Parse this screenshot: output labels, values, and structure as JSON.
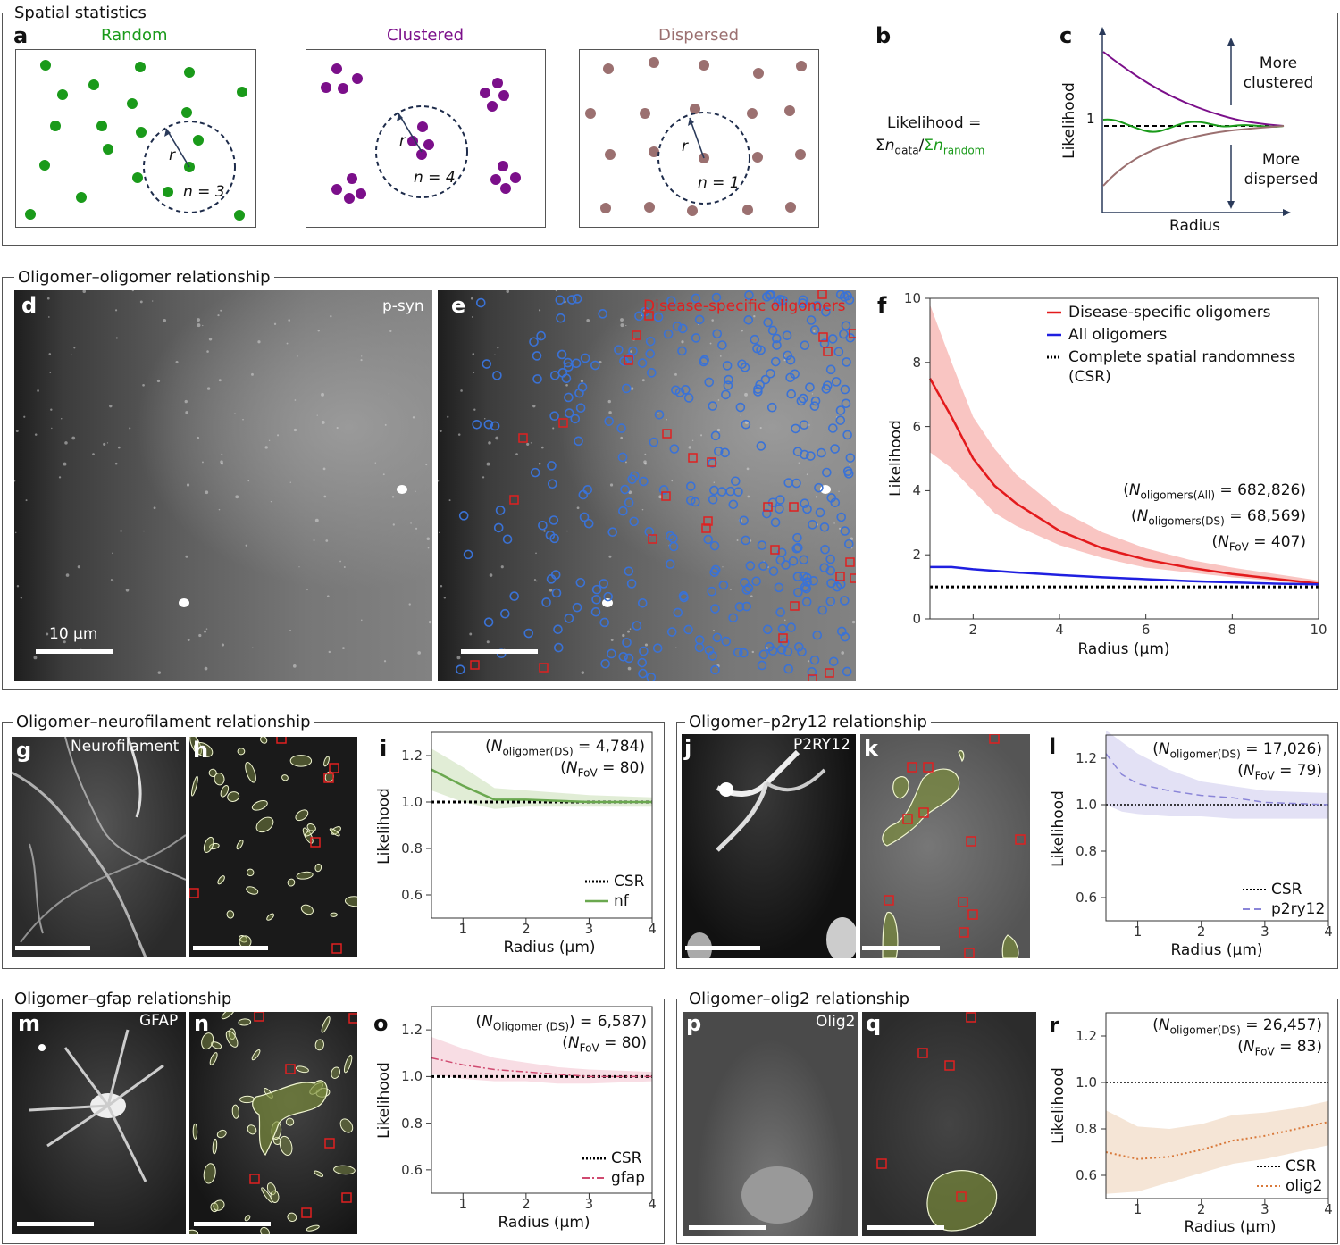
{
  "sections": {
    "spatial": "Spatial statistics",
    "oligo": "Oligomer–oligomer relationship",
    "nf": "Oligomer–neurofilament relationship",
    "p2": "Oligomer–p2ry12 relationship",
    "gfap": "Oligomer–gfap relationship",
    "olig2": "Oligomer–olig2 relationship"
  },
  "panel_letters": {
    "a": "a",
    "b": "b",
    "c": "c",
    "d": "d",
    "e": "e",
    "f": "f",
    "g": "g",
    "h": "h",
    "i": "i",
    "j": "j",
    "k": "k",
    "l": "l",
    "m": "m",
    "n": "n",
    "o": "o",
    "p": "p",
    "q": "q",
    "r": "r"
  },
  "panel_a": {
    "random": {
      "title": "Random",
      "n_label": "n = 3",
      "r": "r",
      "color": "#1a9a1a"
    },
    "clustered": {
      "title": "Clustered",
      "n_label": "n = 4",
      "r": "r",
      "color": "#7b0f8a"
    },
    "dispersed": {
      "title": "Dispersed",
      "n_label": "n = 1",
      "r": "r",
      "color": "#9b7070"
    }
  },
  "panel_b": {
    "line1": "Likelihood =",
    "sigma": "Σ",
    "n": "n",
    "sub_data": "data",
    "slash": "/",
    "sub_random": "random"
  },
  "panel_c": {
    "ylabel": "Likelihood",
    "y_tick": "1",
    "xlabel": "Radius",
    "up_label": [
      "More",
      "clustered"
    ],
    "down_label": [
      "More",
      "dispersed"
    ],
    "colors": {
      "clustered": "#7b0f8a",
      "random": "#1a9a1a",
      "dispersed": "#9b7070"
    }
  },
  "images": {
    "d": {
      "label": "p-syn",
      "scale": "10 µm"
    },
    "e": {
      "label": "Disease-specific oligomers",
      "circle_color": "#3a72d6",
      "square_color": "#e02020"
    },
    "g": {
      "label": "Neurofilament"
    },
    "j": {
      "label": "P2RY12"
    },
    "m": {
      "label": "GFAP"
    },
    "p": {
      "label": "Olig2"
    }
  },
  "chart_data": [
    {
      "id": "f",
      "type": "line",
      "xlabel": "Radius (µm)",
      "ylabel": "Likelihood",
      "xlim": [
        1,
        10
      ],
      "ylim": [
        0,
        10
      ],
      "xticks": [
        2,
        4,
        6,
        8,
        10
      ],
      "yticks": [
        0,
        2,
        4,
        6,
        8,
        10
      ],
      "ytick_labels": [
        "0",
        "2",
        "4",
        "6",
        "8",
        "10"
      ],
      "legend_position": "top-right",
      "annotations": [
        {
          "sym": "N",
          "sub": "oligomers(All)",
          "text": " = 682,826)"
        },
        {
          "sym": "N",
          "sub": "oligomers(DS)",
          "text": " = 68,569)"
        },
        {
          "sym": "N",
          "sub": "FoV",
          "text": " = 407)"
        }
      ],
      "series": [
        {
          "name": "Disease-specific oligomers",
          "color": "#e31a1c",
          "style": "solid",
          "band_color": "#f7b7b3",
          "x": [
            1,
            1.5,
            2,
            2.5,
            3,
            4,
            5,
            6,
            7,
            8,
            9,
            10
          ],
          "y": [
            7.5,
            6.3,
            5.0,
            4.15,
            3.6,
            2.75,
            2.2,
            1.85,
            1.6,
            1.4,
            1.25,
            1.1
          ],
          "lower": [
            5.2,
            4.7,
            4.0,
            3.3,
            2.9,
            2.3,
            1.9,
            1.6,
            1.45,
            1.3,
            1.18,
            1.05
          ],
          "upper": [
            9.8,
            8.0,
            6.3,
            5.3,
            4.5,
            3.4,
            2.7,
            2.2,
            1.85,
            1.6,
            1.4,
            1.2
          ]
        },
        {
          "name": "All oligomers",
          "color": "#1f1fe0",
          "style": "solid",
          "x": [
            1,
            1.5,
            2,
            3,
            4,
            5,
            6,
            7,
            8,
            9,
            10
          ],
          "y": [
            1.62,
            1.62,
            1.55,
            1.45,
            1.37,
            1.3,
            1.24,
            1.18,
            1.14,
            1.1,
            1.08
          ]
        },
        {
          "name": "Complete spatial randomness",
          "name_line2": "(CSR)",
          "color": "#000000",
          "style": "csr-thick",
          "x": [
            1,
            10
          ],
          "y": [
            1,
            1
          ]
        }
      ]
    },
    {
      "id": "i",
      "type": "line",
      "xlabel": "Radius (µm)",
      "ylabel": "Likelihood",
      "xlim": [
        0.5,
        4
      ],
      "ylim": [
        0.5,
        1.3
      ],
      "xticks": [
        1,
        2,
        3,
        4
      ],
      "yticks": [
        0.6,
        0.8,
        1.0,
        1.2
      ],
      "ytick_labels": [
        "0.6",
        "0.8",
        "1.0",
        "1.2"
      ],
      "legend_position": "bottom-right",
      "annotations": [
        {
          "sym": "N",
          "sub": "oligomer(DS)",
          "text": " = 4,784)"
        },
        {
          "sym": "N",
          "sub": "FoV",
          "text": " = 80)"
        }
      ],
      "series": [
        {
          "name": "CSR",
          "color": "#000000",
          "style": "csr-thick",
          "x": [
            0.5,
            4
          ],
          "y": [
            1,
            1
          ]
        },
        {
          "name": "nf",
          "color": "#6aa84f",
          "style": "solid",
          "band_color": "#d9e8cc",
          "x": [
            0.5,
            1,
            1.5,
            2,
            3,
            4
          ],
          "y": [
            1.14,
            1.07,
            1.01,
            1.01,
            1.0,
            1.0
          ],
          "lower": [
            1.05,
            1.0,
            0.97,
            0.98,
            0.98,
            0.98
          ],
          "upper": [
            1.23,
            1.15,
            1.06,
            1.05,
            1.03,
            1.02
          ]
        }
      ]
    },
    {
      "id": "l",
      "type": "line",
      "xlabel": "Radius (µm)",
      "ylabel": "Likelihood",
      "xlim": [
        0.5,
        4
      ],
      "ylim": [
        0.5,
        1.3
      ],
      "xticks": [
        1,
        2,
        3,
        4
      ],
      "yticks": [
        0.6,
        0.8,
        1.0,
        1.2
      ],
      "ytick_labels": [
        "0.6",
        "0.8",
        "1.0",
        "1.2"
      ],
      "legend_position": "bottom-right",
      "annotations": [
        {
          "sym": "N",
          "sub": "oligomer(DS)",
          "text": " = 17,026)"
        },
        {
          "sym": "N",
          "sub": "FoV",
          "text": " = 79)"
        }
      ],
      "series": [
        {
          "name": "CSR",
          "color": "#000000",
          "style": "csr-thin",
          "x": [
            0.5,
            4
          ],
          "y": [
            1,
            1
          ]
        },
        {
          "name": "p2ry12",
          "color": "#8a85d8",
          "style": "dashed",
          "band_color": "#dcdaf3",
          "x": [
            0.5,
            0.75,
            1,
            1.5,
            2,
            2.5,
            3,
            4
          ],
          "y": [
            1.22,
            1.13,
            1.09,
            1.06,
            1.04,
            1.03,
            1.01,
            1.0
          ],
          "lower": [
            1.0,
            0.97,
            0.96,
            0.95,
            0.95,
            0.94,
            0.94,
            0.94
          ],
          "upper": [
            1.32,
            1.27,
            1.22,
            1.15,
            1.1,
            1.08,
            1.06,
            1.05
          ]
        }
      ]
    },
    {
      "id": "o",
      "type": "line",
      "xlabel": "Radius (µm)",
      "ylabel": "Likelihood",
      "xlim": [
        0.5,
        4
      ],
      "ylim": [
        0.5,
        1.3
      ],
      "xticks": [
        1,
        2,
        3,
        4
      ],
      "yticks": [
        0.6,
        0.8,
        1.0,
        1.2
      ],
      "ytick_labels": [
        "0.6",
        "0.8",
        "1.0",
        "1.2"
      ],
      "legend_position": "bottom-right",
      "annotations": [
        {
          "sym": "N",
          "sub": "Oligomer (DS)",
          "text": ") = 6,587)"
        },
        {
          "sym": "N",
          "sub": "FoV",
          "text": " = 80)"
        }
      ],
      "series": [
        {
          "name": "CSR",
          "color": "#000000",
          "style": "csr-thick",
          "x": [
            0.5,
            4
          ],
          "y": [
            1,
            1
          ]
        },
        {
          "name": "gfap",
          "color": "#d04a70",
          "style": "dashdot",
          "band_color": "#f6d5dd",
          "x": [
            0.5,
            1,
            1.5,
            2,
            2.5,
            3,
            4
          ],
          "y": [
            1.08,
            1.05,
            1.03,
            1.02,
            1.01,
            1.0,
            1.0
          ],
          "lower": [
            1.01,
            0.99,
            0.98,
            0.98,
            0.97,
            0.97,
            0.98
          ],
          "upper": [
            1.17,
            1.12,
            1.08,
            1.06,
            1.04,
            1.03,
            1.02
          ]
        }
      ]
    },
    {
      "id": "r",
      "type": "line",
      "xlabel": "Radius (µm)",
      "ylabel": "Likelihood",
      "xlim": [
        0.5,
        4
      ],
      "ylim": [
        0.5,
        1.3
      ],
      "xticks": [
        1,
        2,
        3,
        4
      ],
      "yticks": [
        0.6,
        0.8,
        1.0,
        1.2
      ],
      "ytick_labels": [
        "0.6",
        "0.8",
        "1.0",
        "1.2"
      ],
      "legend_position": "bottom-right",
      "annotations": [
        {
          "sym": "N",
          "sub": "oligomer(DS)",
          "text": " = 26,457)"
        },
        {
          "sym": "N",
          "sub": "FoV",
          "text": " = 83)"
        }
      ],
      "series": [
        {
          "name": "CSR",
          "color": "#000000",
          "style": "csr-thin",
          "x": [
            0.5,
            4
          ],
          "y": [
            1,
            1
          ]
        },
        {
          "name": "olig2",
          "color": "#d9793a",
          "style": "dotted",
          "band_color": "#f3dfcc",
          "x": [
            0.5,
            1,
            1.5,
            2,
            2.5,
            3,
            3.5,
            4
          ],
          "y": [
            0.7,
            0.67,
            0.68,
            0.71,
            0.75,
            0.77,
            0.8,
            0.83
          ],
          "lower": [
            0.52,
            0.53,
            0.57,
            0.61,
            0.65,
            0.67,
            0.7,
            0.73
          ],
          "upper": [
            0.88,
            0.81,
            0.8,
            0.82,
            0.86,
            0.87,
            0.89,
            0.92
          ]
        }
      ]
    }
  ]
}
